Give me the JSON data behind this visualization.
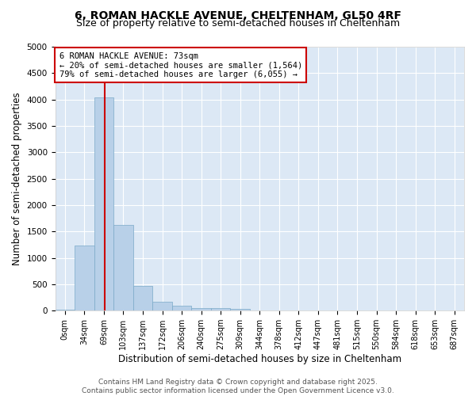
{
  "title_line1": "6, ROMAN HACKLE AVENUE, CHELTENHAM, GL50 4RF",
  "title_line2": "Size of property relative to semi-detached houses in Cheltenham",
  "xlabel": "Distribution of semi-detached houses by size in Cheltenham",
  "ylabel": "Number of semi-detached properties",
  "bar_color": "#b8d0e8",
  "bar_edge_color": "#7aaac8",
  "plot_bg_color": "#dce8f5",
  "fig_bg_color": "#ffffff",
  "grid_color": "#ffffff",
  "categories": [
    "0sqm",
    "34sqm",
    "69sqm",
    "103sqm",
    "137sqm",
    "172sqm",
    "206sqm",
    "240sqm",
    "275sqm",
    "309sqm",
    "344sqm",
    "378sqm",
    "412sqm",
    "447sqm",
    "481sqm",
    "515sqm",
    "550sqm",
    "584sqm",
    "618sqm",
    "653sqm",
    "687sqm"
  ],
  "bar_heights": [
    25,
    1230,
    4040,
    1630,
    470,
    165,
    100,
    55,
    45,
    35,
    10,
    5,
    5,
    3,
    2,
    2,
    1,
    1,
    1,
    0,
    0
  ],
  "ylim": [
    0,
    5000
  ],
  "yticks": [
    0,
    500,
    1000,
    1500,
    2000,
    2500,
    3000,
    3500,
    4000,
    4500,
    5000
  ],
  "red_line_x": 2.05,
  "annotation_title": "6 ROMAN HACKLE AVENUE: 73sqm",
  "annotation_smaller": "← 20% of semi-detached houses are smaller (1,564)",
  "annotation_larger": "79% of semi-detached houses are larger (6,055) →",
  "annotation_box_color": "#ffffff",
  "annotation_border_color": "#cc0000",
  "red_line_color": "#cc0000",
  "footer_line1": "Contains HM Land Registry data © Crown copyright and database right 2025.",
  "footer_line2": "Contains public sector information licensed under the Open Government Licence v3.0.",
  "title_fontsize": 10,
  "subtitle_fontsize": 9,
  "axis_label_fontsize": 8.5,
  "tick_fontsize": 7.5,
  "annotation_fontsize": 7.5,
  "footer_fontsize": 6.5
}
